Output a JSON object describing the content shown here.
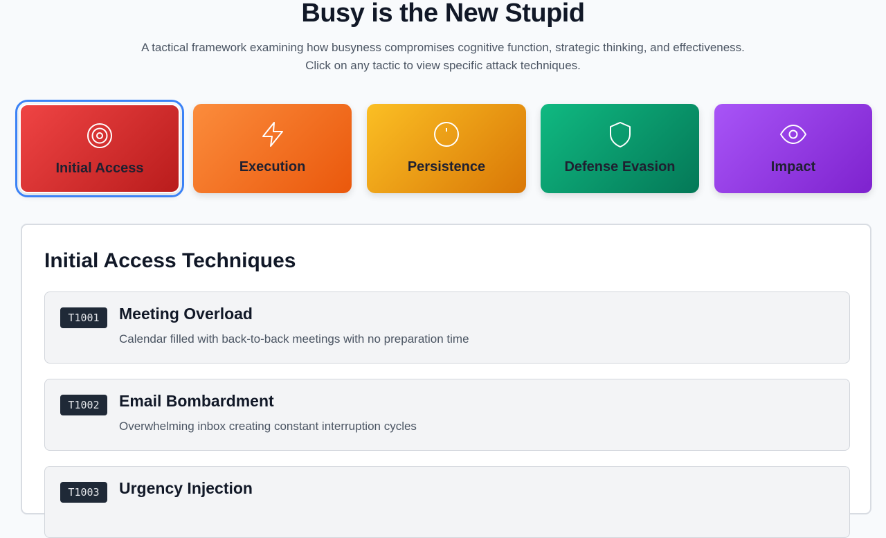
{
  "header": {
    "title": "Busy is the New Stupid",
    "subtitle_line1": "A tactical framework examining how busyness compromises cognitive function, strategic thinking, and effectiveness.",
    "subtitle_line2": "Click on any tactic to view specific attack techniques."
  },
  "tactics": [
    {
      "label": "Initial Access",
      "icon": "target-icon",
      "color_from": "#ef4444",
      "color_to": "#b91c1c",
      "selected": true
    },
    {
      "label": "Execution",
      "icon": "lightning-icon",
      "color_from": "#fb8c3c",
      "color_to": "#ea580c",
      "selected": false
    },
    {
      "label": "Persistence",
      "icon": "clock-icon",
      "color_from": "#fbbf24",
      "color_to": "#d97706",
      "selected": false
    },
    {
      "label": "Defense Evasion",
      "icon": "shield-icon",
      "color_from": "#10b981",
      "color_to": "#047857",
      "selected": false
    },
    {
      "label": "Impact",
      "icon": "eye-icon",
      "color_from": "#a855f7",
      "color_to": "#7e22ce",
      "selected": false
    }
  ],
  "panel": {
    "title": "Initial Access Techniques",
    "techniques": [
      {
        "id": "T1001",
        "name": "Meeting Overload",
        "description": "Calendar filled with back-to-back meetings with no preparation time"
      },
      {
        "id": "T1002",
        "name": "Email Bombardment",
        "description": "Overwhelming inbox creating constant interruption cycles"
      },
      {
        "id": "T1003",
        "name": "Urgency Injection",
        "description": ""
      }
    ]
  }
}
